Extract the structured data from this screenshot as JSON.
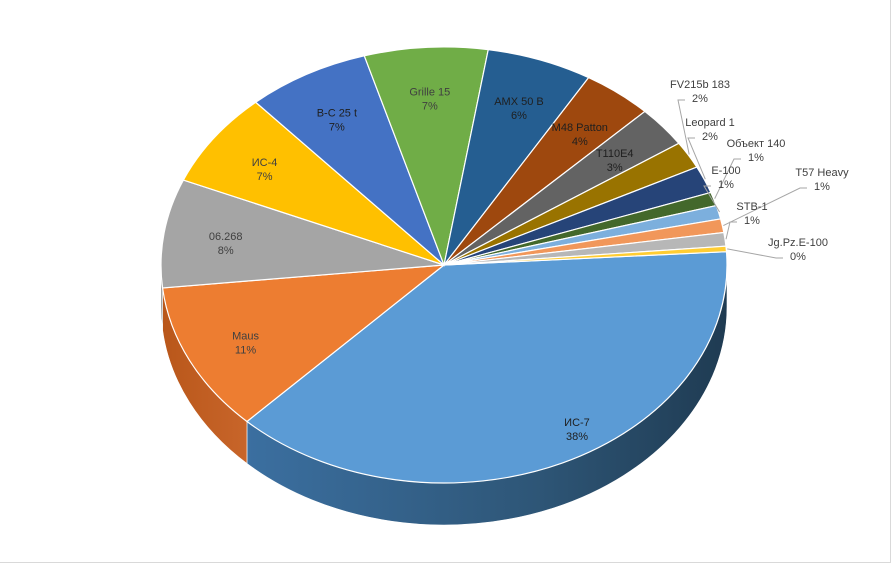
{
  "chart_data": {
    "type": "pie",
    "style": "3d",
    "title": "",
    "series": [
      {
        "values": [
          {
            "label": "ИС-7",
            "value": 38,
            "pct": "38%",
            "color": "#5B9BD5"
          },
          {
            "label": "Maus",
            "value": 11,
            "pct": "11%",
            "color": "#ED7D31"
          },
          {
            "label": "06.268",
            "value": 8,
            "pct": "8%",
            "color": "#A5A5A5"
          },
          {
            "label": "ИС-4",
            "value": 7,
            "pct": "7%",
            "color": "#FFC000"
          },
          {
            "label": "B-C 25 t",
            "value": 7,
            "pct": "7%",
            "color": "#4472C4"
          },
          {
            "label": "Grille 15",
            "value": 7,
            "pct": "7%",
            "color": "#70AD47"
          },
          {
            "label": "AMX 50 B",
            "value": 6,
            "pct": "6%",
            "color": "#255E91"
          },
          {
            "label": "M48 Patton",
            "value": 4,
            "pct": "4%",
            "color": "#9E480E"
          },
          {
            "label": "T110E4",
            "value": 3,
            "pct": "3%",
            "color": "#636363"
          },
          {
            "label": "FV215b 183",
            "value": 2,
            "pct": "2%",
            "color": "#997300"
          },
          {
            "label": "Leopard 1",
            "value": 2,
            "pct": "2%",
            "color": "#264478"
          },
          {
            "label": "Объект 140",
            "value": 1,
            "pct": "1%",
            "color": "#43682B"
          },
          {
            "label": "E-100",
            "value": 1,
            "pct": "1%",
            "color": "#7CAFDD"
          },
          {
            "label": "T57 Heavy",
            "value": 1,
            "pct": "1%",
            "color": "#F1975A"
          },
          {
            "label": "STB-1",
            "value": 1,
            "pct": "1%",
            "color": "#B7B7B7"
          },
          {
            "label": "Jg.Pz.E-100",
            "value": 0.4,
            "pct": "0%",
            "color": "#FFCD33"
          }
        ]
      }
    ],
    "legend": "none",
    "data_labels": "category name and percentage"
  }
}
